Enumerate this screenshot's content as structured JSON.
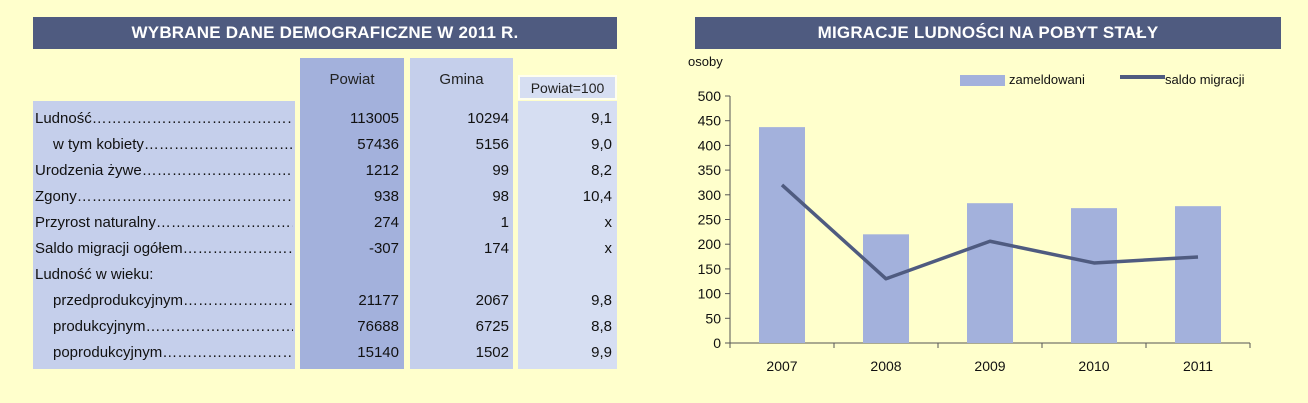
{
  "left_title": "WYBRANE DANE DEMOGRAFICZNE W 2011 R.",
  "right_title": "MIGRACJE LUDNOŚCI NA POBYT STAŁY",
  "table": {
    "headers": {
      "powiat": "Powiat",
      "gmina": "Gmina",
      "ratio": "Powiat=100"
    },
    "rows": [
      {
        "label": "Ludność……………………………………………",
        "indent": false,
        "powiat": "113005",
        "gmina": "10294",
        "ratio": "9,1"
      },
      {
        "label": "w tym kobiety…………………………………",
        "indent": true,
        "powiat": "57436",
        "gmina": "5156",
        "ratio": "9,0"
      },
      {
        "label": "Urodzenia żywe………………………………",
        "indent": false,
        "powiat": "1212",
        "gmina": "99",
        "ratio": "8,2"
      },
      {
        "label": "Zgony………………………………………………",
        "indent": false,
        "powiat": "938",
        "gmina": "98",
        "ratio": "10,4"
      },
      {
        "label": "Przyrost naturalny………………………………",
        "indent": false,
        "powiat": "274",
        "gmina": "1",
        "ratio": "x"
      },
      {
        "label": "Saldo migracji ogółem……………………",
        "indent": false,
        "powiat": "-307",
        "gmina": "174",
        "ratio": "x"
      },
      {
        "label": "Ludność w wieku:",
        "indent": false,
        "powiat": "",
        "gmina": "",
        "ratio": ""
      },
      {
        "label": "przedprodukcyjnym…………………………",
        "indent": true,
        "powiat": "21177",
        "gmina": "2067",
        "ratio": "9,8"
      },
      {
        "label": "produkcyjnym……………………………………",
        "indent": true,
        "powiat": "76688",
        "gmina": "6725",
        "ratio": "8,8"
      },
      {
        "label": "poprodukcyjnym…………………………………",
        "indent": true,
        "powiat": "15140",
        "gmina": "1502",
        "ratio": "9,9"
      }
    ]
  },
  "chart_data": {
    "type": "bar",
    "title": "MIGRACJE LUDNOŚCI NA POBYT STAŁY",
    "ylabel": "osoby",
    "categories": [
      "2007",
      "2008",
      "2009",
      "2010",
      "2011"
    ],
    "series": [
      {
        "name": "zameldowani",
        "type": "bar",
        "color": "#a3b1dc",
        "values": [
          437,
          220,
          283,
          273,
          277
        ]
      },
      {
        "name": "saldo migracji",
        "type": "line",
        "color": "#4f5b80",
        "values": [
          320,
          130,
          206,
          162,
          174
        ]
      }
    ],
    "ylim": [
      0,
      500
    ],
    "yticks": [
      0,
      50,
      100,
      150,
      200,
      250,
      300,
      350,
      400,
      450,
      500
    ],
    "grid": false,
    "legend": "top"
  }
}
